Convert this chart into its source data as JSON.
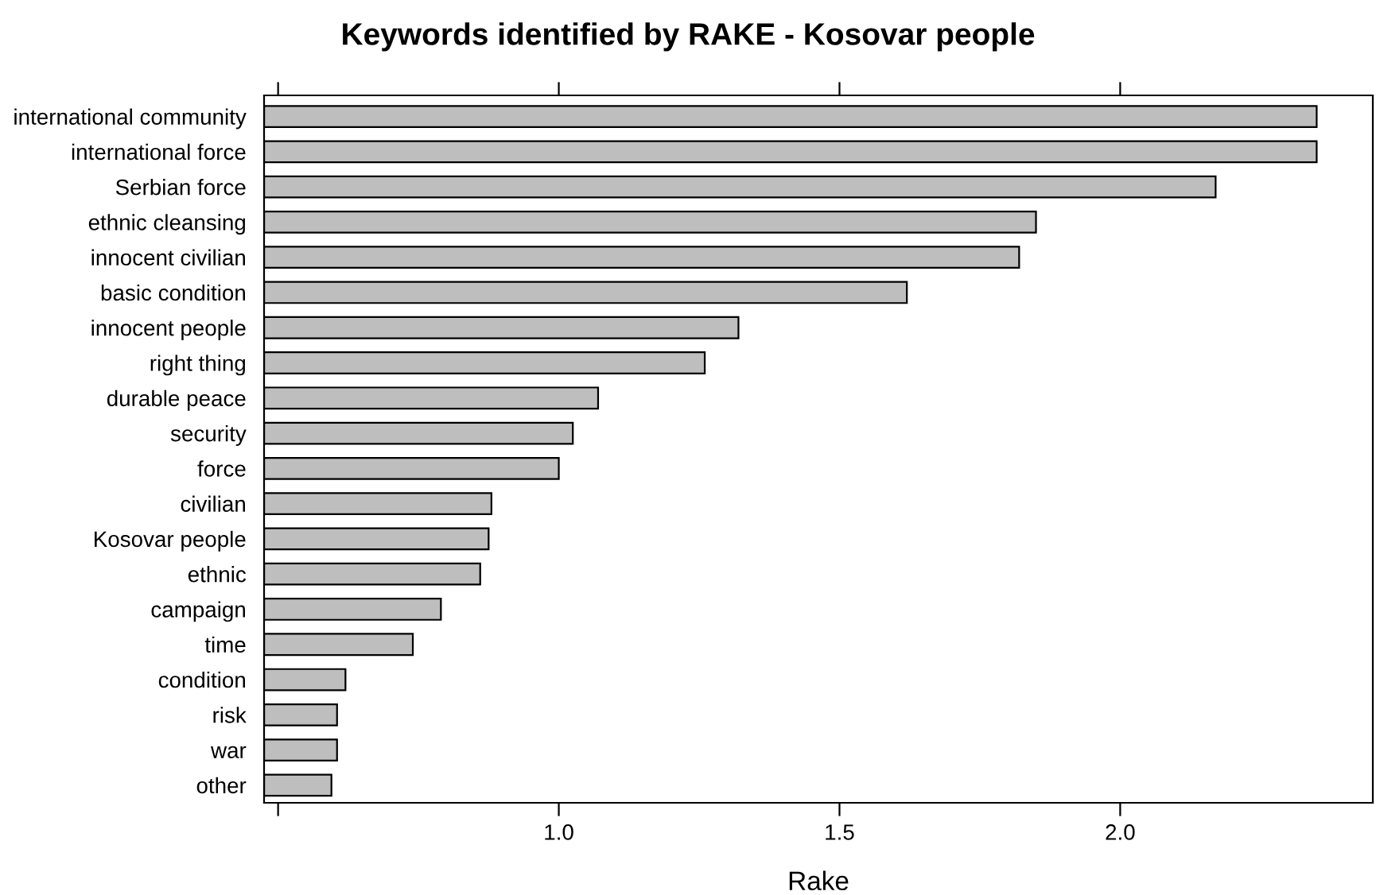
{
  "chart_data": {
    "type": "bar",
    "orientation": "horizontal",
    "title": "Keywords identified by RAKE - Kosovar people",
    "xlabel": "Rake",
    "categories": [
      "international community",
      "international force",
      "Serbian force",
      "ethnic cleansing",
      "innocent civilian",
      "basic condition",
      "innocent people",
      "right thing",
      "durable peace",
      "security",
      "force",
      "civilian",
      "Kosovar people",
      "ethnic",
      "campaign",
      "time",
      "condition",
      "risk",
      "war",
      "other"
    ],
    "values": [
      2.35,
      2.35,
      2.17,
      1.85,
      1.82,
      1.62,
      1.32,
      1.26,
      1.07,
      1.025,
      1.0,
      0.88,
      0.875,
      0.86,
      0.79,
      0.74,
      0.62,
      0.605,
      0.605,
      0.595
    ],
    "color": "#bebebe",
    "xlim": [
      0.475,
      2.45
    ],
    "xticks": [
      {
        "value": 0.5,
        "label": null
      },
      {
        "value": 1.0,
        "label": "1.0"
      },
      {
        "value": 1.5,
        "label": "1.5"
      },
      {
        "value": 2.0,
        "label": "2.0"
      }
    ],
    "grid": false,
    "legend": false
  }
}
